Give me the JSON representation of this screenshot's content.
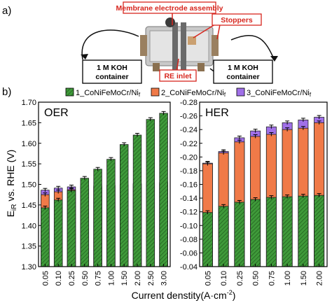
{
  "panels": {
    "a": "a)",
    "b": "b)"
  },
  "photo": {
    "callout_mea": "Membrane electrode assembly",
    "callout_stoppers": "Stoppers",
    "callout_re": "RE inlet",
    "container_left_line1": "1 M KOH",
    "container_left_line2": "container",
    "container_right_line1": "1 M KOH",
    "container_right_line2": "container",
    "colors": {
      "callout": "#d7261e",
      "box_stroke": "#000000"
    }
  },
  "legend": [
    {
      "label_main": "1_CoNiFeMoCr/Ni",
      "label_sub": "f",
      "color": "#3f9a3a",
      "hatch": true
    },
    {
      "label_main": "2_CoNiFeMoCr/Ni",
      "label_sub": "f",
      "color": "#f07a48",
      "hatch": false
    },
    {
      "label_main": "3_CoNiFeMoCr/Ni",
      "label_sub": "f",
      "color": "#a070e8",
      "hatch": false
    }
  ],
  "ylabel_main": "E",
  "ylabel_sub": "iR",
  "ylabel_rest": " vs. RHE (V)",
  "xlabel_main": "Current denstity(A·cm",
  "xlabel_sup": "-2",
  "xlabel_end": ")",
  "chart_data": [
    {
      "type": "bar",
      "title": "OER",
      "categories": [
        "0.05",
        "0.10",
        "0.25",
        "0.50",
        "0.75",
        "1.00",
        "1.50",
        "2.00",
        "2.50",
        "3.00"
      ],
      "ylim": [
        1.3,
        1.7
      ],
      "yticks": [
        "1.30",
        "1.35",
        "1.40",
        "1.45",
        "1.50",
        "1.55",
        "1.60",
        "1.65",
        "1.70"
      ],
      "series": [
        {
          "name": "1_CoNiFeMoCr/Nif",
          "values": [
            1.443,
            1.462,
            1.485,
            1.515,
            1.537,
            1.561,
            1.597,
            1.62,
            1.658,
            1.673
          ]
        },
        {
          "name": "2_CoNiFeMoCr/Nif",
          "values": [
            1.475,
            1.482,
            1.487,
            1.491,
            1.494,
            1.497,
            1.499,
            1.502,
            1.503,
            1.505
          ]
        },
        {
          "name": "3_CoNiFeMoCr/Nif",
          "values": [
            1.486,
            1.491,
            1.494,
            1.496,
            1.497,
            1.498,
            1.499,
            1.5,
            1.501,
            1.503
          ]
        }
      ],
      "draw_order": [
        2,
        1,
        0
      ],
      "grid": false
    },
    {
      "type": "bar",
      "title": "HER",
      "categories": [
        "0.05",
        "0.10",
        "0.25",
        "0.50",
        "0.75",
        "1.00",
        "1.50",
        "2.00"
      ],
      "ylim": [
        -0.04,
        -0.28
      ],
      "yticks": [
        "-0.04",
        "-0.06",
        "-0.08",
        "-0.10",
        "-0.12",
        "-0.14",
        "-0.16",
        "-0.18",
        "-0.20",
        "-0.22",
        "-0.24",
        "-0.26",
        "-0.28"
      ],
      "series": [
        {
          "name": "1_CoNiFeMoCr/Nif",
          "values": [
            -0.119,
            -0.128,
            -0.134,
            -0.138,
            -0.141,
            -0.142,
            -0.143,
            -0.144
          ]
        },
        {
          "name": "2_CoNiFeMoCr/Nif",
          "values": [
            -0.19,
            -0.206,
            -0.222,
            -0.23,
            -0.233,
            -0.24,
            -0.242,
            -0.25
          ]
        },
        {
          "name": "3_CoNiFeMoCr/Nif",
          "values": [
            -0.191,
            -0.208,
            -0.228,
            -0.238,
            -0.244,
            -0.25,
            -0.254,
            -0.258
          ]
        }
      ],
      "draw_order": [
        2,
        1,
        0
      ],
      "grid": false
    }
  ]
}
